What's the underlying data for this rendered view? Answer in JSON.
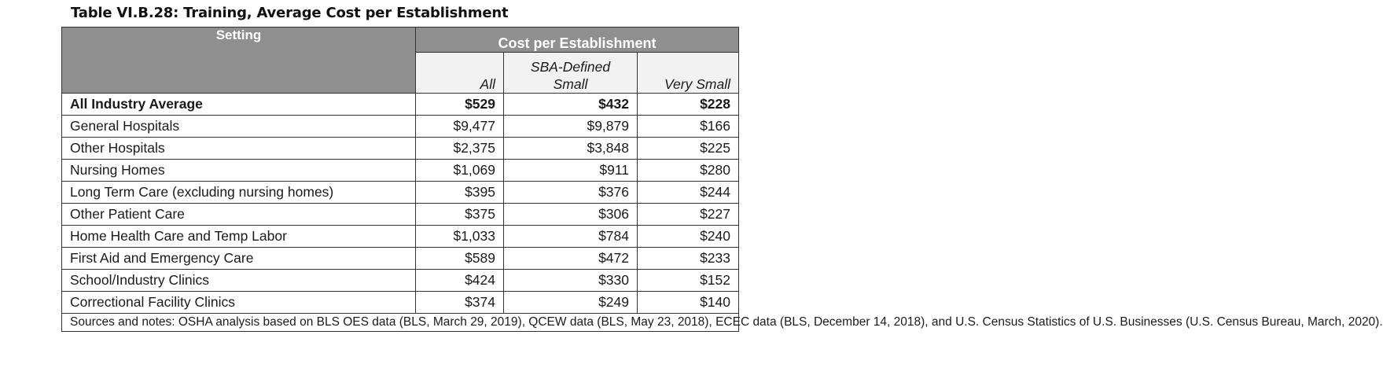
{
  "caption": "Table VI.B.28: Training, Average Cost per Establishment",
  "headers": {
    "setting": "Setting",
    "group": "Cost per Establishment",
    "all": "All",
    "sba_line1": "SBA-Defined",
    "sba_line2": "Small",
    "very_small": "Very Small"
  },
  "rows": [
    {
      "setting": "All Industry Average",
      "all": "$529",
      "sba": "$432",
      "very_small": "$228"
    },
    {
      "setting": "General Hospitals",
      "all": "$9,477",
      "sba": "$9,879",
      "very_small": "$166"
    },
    {
      "setting": "Other Hospitals",
      "all": "$2,375",
      "sba": "$3,848",
      "very_small": "$225"
    },
    {
      "setting": "Nursing Homes",
      "all": "$1,069",
      "sba": "$911",
      "very_small": "$280"
    },
    {
      "setting": "Long Term Care (excluding nursing homes)",
      "all": "$395",
      "sba": "$376",
      "very_small": "$244"
    },
    {
      "setting": "Other Patient Care",
      "all": "$375",
      "sba": "$306",
      "very_small": "$227"
    },
    {
      "setting": "Home Health Care and Temp Labor",
      "all": "$1,033",
      "sba": "$784",
      "very_small": "$240"
    },
    {
      "setting": "First Aid and Emergency Care",
      "all": "$589",
      "sba": "$472",
      "very_small": "$233"
    },
    {
      "setting": "School/Industry Clinics",
      "all": "$424",
      "sba": "$330",
      "very_small": "$152"
    },
    {
      "setting": "Correctional Facility Clinics",
      "all": "$374",
      "sba": "$249",
      "very_small": "$140"
    }
  ],
  "notes": "Sources and notes: OSHA analysis based on BLS OES data (BLS, March 29, 2019), QCEW data (BLS, May 23, 2018), ECEC data (BLS, December 14, 2018), and U.S. Census Statistics of U.S. Businesses (U.S. Census Bureau, March, 2020)."
}
